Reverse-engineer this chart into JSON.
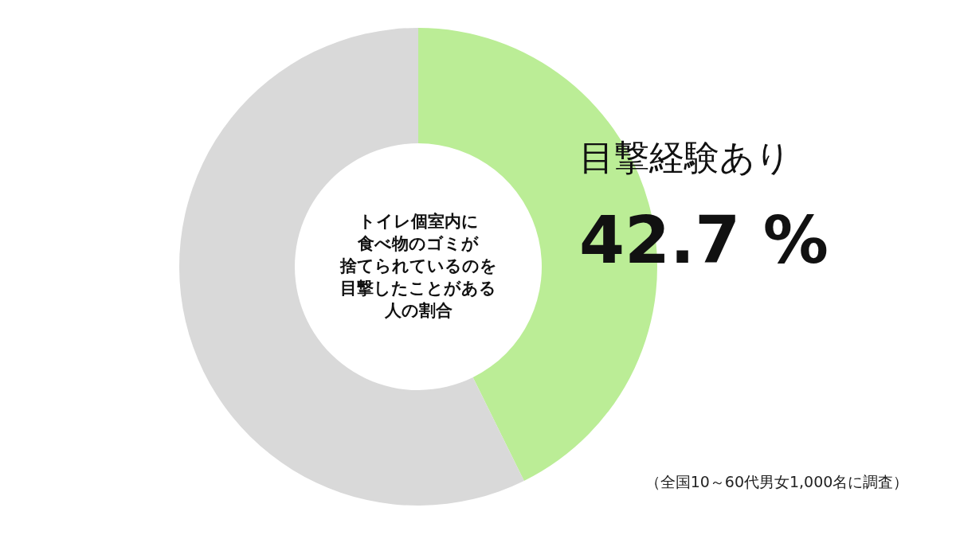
{
  "chart_data": {
    "type": "donut",
    "title": "トイレ個室内に食べ物のゴミが捨てられているのを目撃したことがある人の割合",
    "categories": [
      "目撃経験あり",
      null
    ],
    "values": [
      42.7,
      57.3
    ],
    "colors": [
      "#bbed96",
      "#d9d9d9"
    ],
    "value_labels": [
      "42.7 %",
      null
    ],
    "annotations": [
      "（全国10～60代男女1,000名に調査）"
    ]
  }
}
